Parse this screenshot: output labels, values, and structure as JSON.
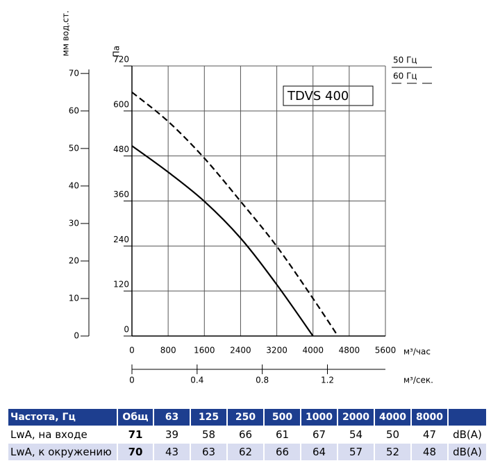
{
  "chart_data": {
    "type": "line",
    "annotation": "TDVS 400",
    "ylabel": "Па",
    "y2label": "мм вод.ст.",
    "xlabel": "м³/час",
    "x2label": "м³/сек.",
    "x": [
      0,
      800,
      1600,
      2400,
      3200,
      4000,
      4550
    ],
    "series": [
      {
        "name": "50 Гц",
        "color": "#000000",
        "dash": false,
        "values": [
          507,
          437,
          359,
          261,
          137,
          0,
          null
        ]
      },
      {
        "name": "60 Гц",
        "color": "#000000",
        "dash": true,
        "values": [
          650,
          572,
          474,
          359,
          239,
          100,
          0
        ]
      }
    ],
    "xlim": [
      0,
      5600
    ],
    "xticks": [
      0,
      800,
      1600,
      2400,
      3200,
      4000,
      4800,
      5600
    ],
    "x2lim": [
      0,
      1.556
    ],
    "x2ticks": [
      0,
      0.4,
      0.8,
      1.2
    ],
    "ylim": [
      0,
      720
    ],
    "yticks": [
      0,
      120,
      240,
      360,
      480,
      600,
      720
    ],
    "y2lim": [
      0,
      72
    ],
    "y2ticks": [
      0,
      10,
      20,
      30,
      40,
      50,
      60,
      70
    ],
    "grid": true
  },
  "table": {
    "header": [
      "Частота, Гц",
      "Общ",
      "63",
      "125",
      "250",
      "500",
      "1000",
      "2000",
      "4000",
      "8000"
    ],
    "rows": [
      [
        "LwA, на входе",
        "71",
        "39",
        "58",
        "66",
        "61",
        "67",
        "54",
        "50",
        "47",
        "dB(A)"
      ],
      [
        "LwA, к окружению",
        "70",
        "43",
        "63",
        "62",
        "66",
        "64",
        "57",
        "52",
        "48",
        "dB(A)"
      ]
    ]
  }
}
